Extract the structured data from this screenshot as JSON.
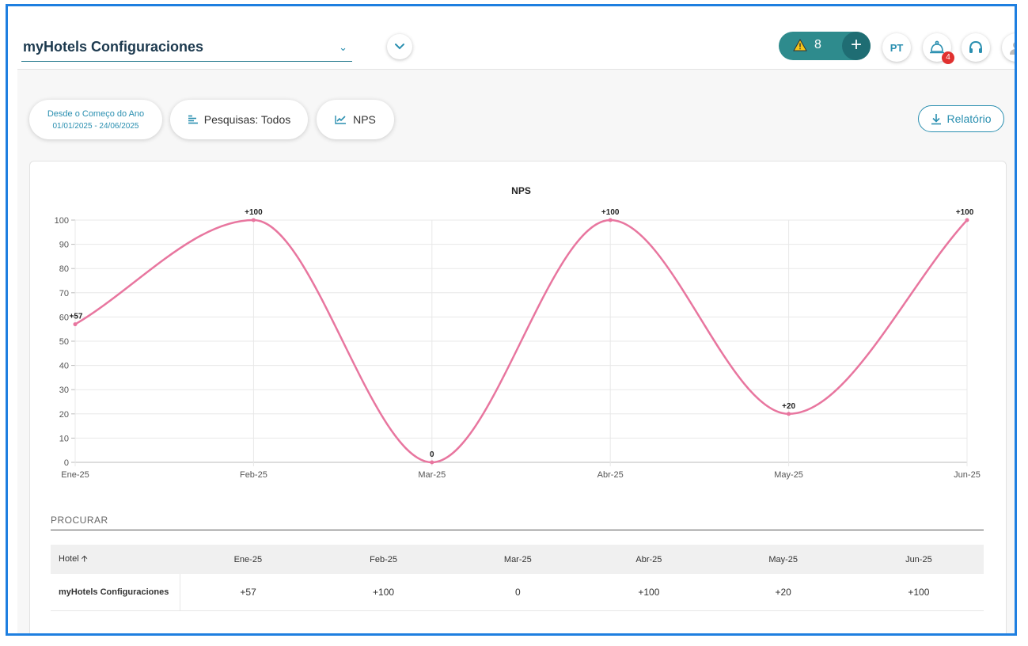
{
  "header": {
    "hotel_name": "myHotels Configuraciones",
    "alert_count": "8",
    "language": "PT",
    "notification_badge": "4"
  },
  "filters": {
    "date_range_label": "Desde o Começo do Ano",
    "date_range_value": "01/01/2025 - 24/06/2025",
    "surveys_label": "Pesquisas: Todos",
    "metric_label": "NPS",
    "report_label": "Relatório"
  },
  "colors": {
    "accent": "#2a8fb0",
    "alert_pill": "#2e8b8d",
    "series_line": "#e8769f",
    "badge": "#e0302f"
  },
  "chart_data": {
    "type": "line",
    "title": "NPS",
    "categories": [
      "Ene-25",
      "Feb-25",
      "Mar-25",
      "Abr-25",
      "May-25",
      "Jun-25"
    ],
    "values": [
      57,
      100,
      0,
      100,
      20,
      100
    ],
    "data_labels": [
      "+57",
      "+100",
      "0",
      "+100",
      "+20",
      "+100"
    ],
    "y_ticks": [
      "0",
      "10",
      "20",
      "30",
      "40",
      "50",
      "60",
      "70",
      "80",
      "90",
      "100"
    ],
    "ylim": [
      0,
      100
    ],
    "grid": true
  },
  "table": {
    "search_label": "PROCURAR",
    "hotel_header": "Hotel",
    "columns": [
      "Ene-25",
      "Feb-25",
      "Mar-25",
      "Abr-25",
      "May-25",
      "Jun-25"
    ],
    "rows": [
      {
        "hotel": "myHotels Configuraciones",
        "values": [
          "+57",
          "+100",
          "0",
          "+100",
          "+20",
          "+100"
        ]
      }
    ]
  }
}
